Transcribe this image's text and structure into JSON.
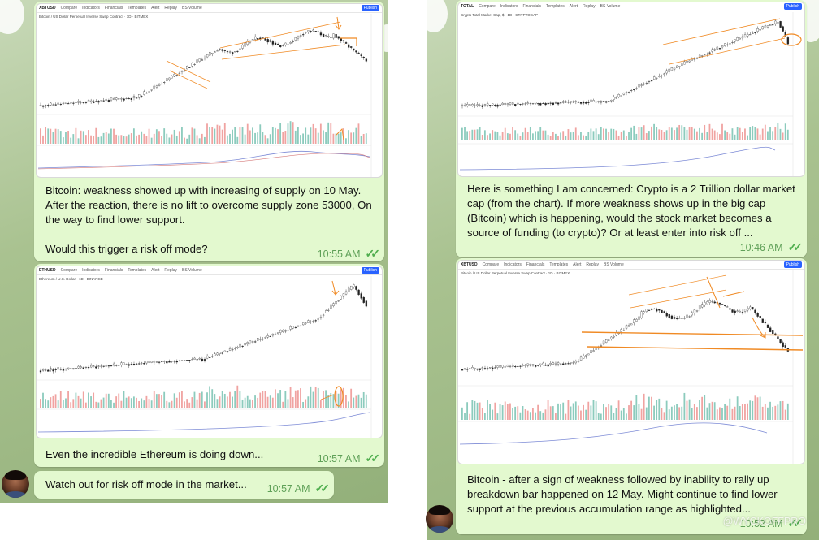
{
  "colors": {
    "bubble": "#e3f9cf",
    "time": "#5fa058",
    "ticks": "#4fae4e",
    "up": "#26a69a",
    "down": "#ef5350",
    "annotation": "#f08a24"
  },
  "messages": [
    {
      "id": "btc1",
      "symbol": "XBTUSD",
      "pair": "Bitcoin / US Dollar Perpetual Inverse Swap Contract · 1D · BITMEX",
      "publish": "Publish",
      "text": "Bitcoin: weakness showed up with increasing of supply on 10 May. After the reaction, there is no lift to overcome supply zone 53000, On the way to find lower support.\n\nWould this trigger a risk off mode?",
      "time": "10:55 AM"
    },
    {
      "id": "eth",
      "symbol": "ETHUSD",
      "pair": "Ethereum / U.S. Dollar · 1D · BINANCE",
      "publish": "Publish",
      "text": "Even the incredible Ethereum is doing down...",
      "time": "10:57 AM"
    },
    {
      "id": "risk",
      "text": "Watch out for risk off mode in the market...",
      "time": "10:57 AM"
    },
    {
      "id": "total",
      "symbol": "TOTAL",
      "pair": "Crypto Total Market Cap, $ · 1D · CRYPTOCAP",
      "publish": "Publish",
      "text": "Here is something I am concerned: Crypto is a 2 Trillion dollar market cap (from the chart). If more weakness shows up in the big cap (Bitcoin) which is happening, would the stock market becomes a source of funding (to crypto)? Or at least enter into risk off ...",
      "time": "10:46 AM"
    },
    {
      "id": "btc2",
      "symbol": "XBTUSD",
      "pair": "Bitcoin / US Dollar Perpetual Inverse Swap Contract · 1D · BITMEX",
      "publish": "Publish",
      "text": "Bitcoin - after a sign of weakness followed by inability to rally up breakdown bar happened on 12 May. Might continue to find lower support at the previous accumulation range as highlighted...",
      "time": "10:52 AM"
    }
  ],
  "toolbar": {
    "compare": "Compare",
    "indicators": "Indicators",
    "financials": "Financials",
    "templates": "Templates",
    "alert": "Alert",
    "replay": "Replay",
    "volume": "BS Volume"
  },
  "watermark": "@WYCKOFFPRO"
}
